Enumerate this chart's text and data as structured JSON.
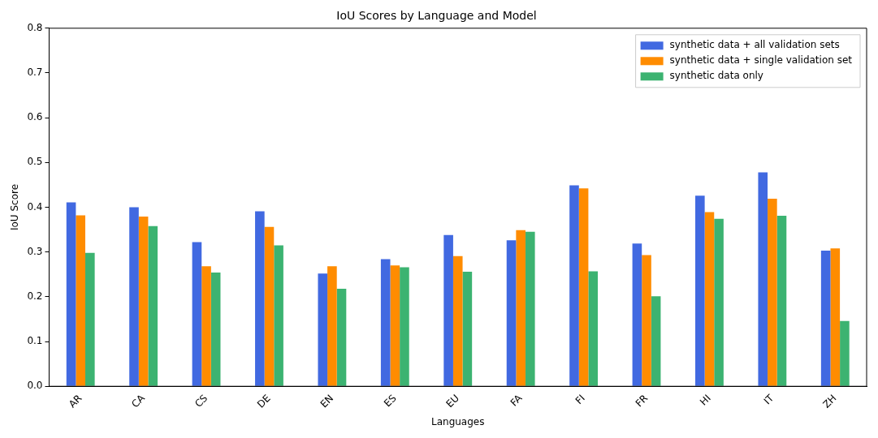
{
  "chart_data": {
    "type": "bar",
    "title": "IoU Scores by Language and Model",
    "xlabel": "Languages",
    "ylabel": "IoU Score",
    "categories": [
      "AR",
      "CA",
      "CS",
      "DE",
      "EN",
      "ES",
      "EU",
      "FA",
      "FI",
      "FR",
      "HI",
      "IT",
      "ZH"
    ],
    "series": [
      {
        "name": "synthetic data + all validation sets",
        "color": "#4169e1",
        "values": [
          0.411,
          0.4,
          0.322,
          0.391,
          0.252,
          0.284,
          0.338,
          0.326,
          0.449,
          0.319,
          0.426,
          0.478,
          0.303
        ]
      },
      {
        "name": "synthetic data + single validation set",
        "color": "#ff8c00",
        "values": [
          0.382,
          0.379,
          0.268,
          0.356,
          0.268,
          0.27,
          0.291,
          0.349,
          0.442,
          0.293,
          0.389,
          0.419,
          0.308
        ]
      },
      {
        "name": "synthetic data only",
        "color": "#3cb371",
        "values": [
          0.298,
          0.358,
          0.254,
          0.315,
          0.218,
          0.266,
          0.256,
          0.345,
          0.257,
          0.201,
          0.374,
          0.381,
          0.146
        ]
      }
    ],
    "ylim": [
      0,
      0.8
    ],
    "yticks": [
      {
        "value": 0,
        "label": "0.0"
      },
      {
        "value": 0.1,
        "label": "0.1"
      },
      {
        "value": 0.2,
        "label": "0.2"
      },
      {
        "value": 0.3,
        "label": "0.3"
      },
      {
        "value": 0.4,
        "label": "0.4"
      },
      {
        "value": 0.5,
        "label": "0.5"
      },
      {
        "value": 0.6,
        "label": "0.6"
      },
      {
        "value": 0.7,
        "label": "0.7"
      },
      {
        "value": 0.8,
        "label": "0.8"
      }
    ],
    "grid": false,
    "legend": "top right"
  }
}
